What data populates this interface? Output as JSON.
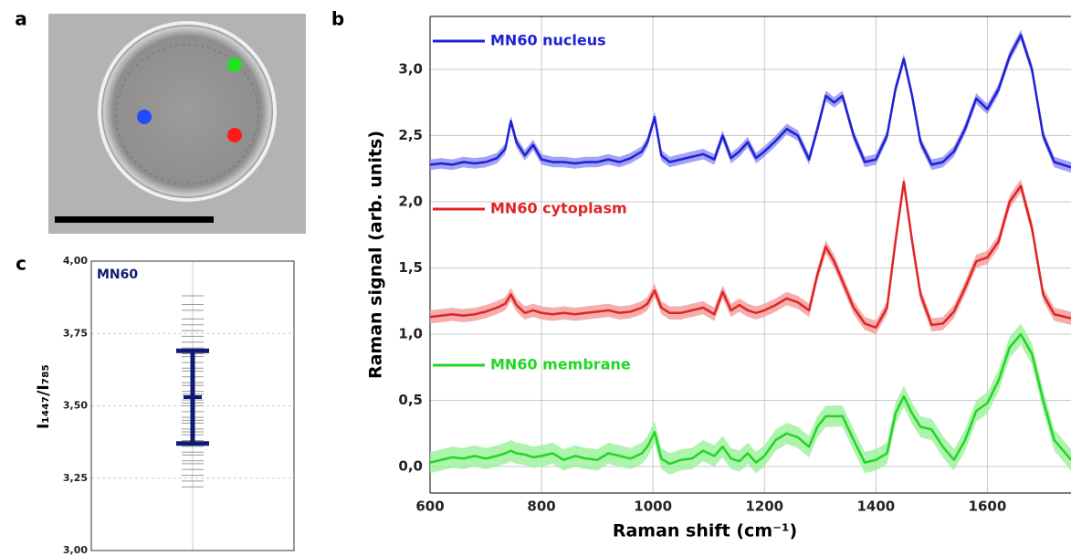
{
  "image": {
    "label": "a"
  },
  "chart_data": [
    {
      "type": "line",
      "panel": "b",
      "xlabel": "Raman shift (cm⁻¹)",
      "ylabel": "Raman signal (arb. units)",
      "xlim": [
        600,
        1750
      ],
      "ylim": [
        -0.2,
        3.4
      ],
      "xticks": [
        600,
        800,
        1000,
        1200,
        1400,
        1600
      ],
      "yticks": [
        {
          "value": 0,
          "label": "0,0"
        },
        {
          "value": 0.5,
          "label": "0,5"
        },
        {
          "value": 1,
          "label": "1,0"
        },
        {
          "value": 1.5,
          "label": "1,5"
        },
        {
          "value": 2,
          "label": "2,0"
        },
        {
          "value": 2.5,
          "label": "2,5"
        },
        {
          "value": 3,
          "label": "3,0"
        }
      ],
      "grid": true,
      "x": [
        600,
        620,
        640,
        660,
        680,
        700,
        720,
        735,
        745,
        755,
        770,
        785,
        800,
        820,
        840,
        860,
        880,
        900,
        920,
        940,
        960,
        980,
        990,
        1003,
        1015,
        1030,
        1050,
        1070,
        1090,
        1110,
        1125,
        1140,
        1155,
        1170,
        1185,
        1200,
        1220,
        1240,
        1260,
        1280,
        1295,
        1310,
        1325,
        1340,
        1360,
        1380,
        1400,
        1420,
        1435,
        1450,
        1465,
        1480,
        1500,
        1520,
        1540,
        1560,
        1580,
        1600,
        1620,
        1640,
        1660,
        1680,
        1700,
        1720,
        1750
      ],
      "series": [
        {
          "name": "MN60 nucleus",
          "color": "#1f1fd6",
          "band_color": "#8c8cf0",
          "error": 0.04,
          "values": [
            2.28,
            2.29,
            2.28,
            2.3,
            2.29,
            2.3,
            2.33,
            2.4,
            2.61,
            2.45,
            2.35,
            2.43,
            2.32,
            2.3,
            2.3,
            2.29,
            2.3,
            2.3,
            2.32,
            2.3,
            2.33,
            2.38,
            2.45,
            2.64,
            2.35,
            2.3,
            2.32,
            2.34,
            2.36,
            2.32,
            2.5,
            2.33,
            2.38,
            2.45,
            2.33,
            2.38,
            2.46,
            2.55,
            2.5,
            2.32,
            2.55,
            2.8,
            2.75,
            2.8,
            2.5,
            2.3,
            2.32,
            2.5,
            2.85,
            3.08,
            2.8,
            2.45,
            2.28,
            2.3,
            2.38,
            2.55,
            2.78,
            2.7,
            2.85,
            3.1,
            3.26,
            3.0,
            2.5,
            2.3,
            2.26
          ]
        },
        {
          "name": "MN60 cytoplasm",
          "color": "#e02424",
          "band_color": "#f29a9a",
          "error": 0.05,
          "values": [
            1.13,
            1.14,
            1.15,
            1.14,
            1.15,
            1.17,
            1.2,
            1.23,
            1.3,
            1.22,
            1.16,
            1.18,
            1.16,
            1.15,
            1.16,
            1.15,
            1.16,
            1.17,
            1.18,
            1.16,
            1.17,
            1.2,
            1.23,
            1.33,
            1.2,
            1.16,
            1.16,
            1.18,
            1.2,
            1.15,
            1.32,
            1.18,
            1.22,
            1.18,
            1.16,
            1.18,
            1.22,
            1.27,
            1.24,
            1.18,
            1.45,
            1.66,
            1.55,
            1.4,
            1.2,
            1.08,
            1.05,
            1.2,
            1.7,
            2.15,
            1.7,
            1.3,
            1.07,
            1.08,
            1.17,
            1.35,
            1.55,
            1.58,
            1.7,
            2.0,
            2.12,
            1.8,
            1.3,
            1.15,
            1.12
          ]
        },
        {
          "name": "MN60 membrane",
          "color": "#22d622",
          "band_color": "#9af09a",
          "error": 0.08,
          "values": [
            0.03,
            0.05,
            0.07,
            0.06,
            0.08,
            0.06,
            0.08,
            0.1,
            0.12,
            0.1,
            0.09,
            0.07,
            0.08,
            0.1,
            0.05,
            0.08,
            0.06,
            0.05,
            0.1,
            0.08,
            0.06,
            0.1,
            0.15,
            0.26,
            0.06,
            0.02,
            0.05,
            0.06,
            0.12,
            0.08,
            0.15,
            0.06,
            0.04,
            0.1,
            0.03,
            0.08,
            0.2,
            0.25,
            0.22,
            0.15,
            0.3,
            0.38,
            0.38,
            0.38,
            0.2,
            0.03,
            0.05,
            0.1,
            0.4,
            0.53,
            0.4,
            0.3,
            0.28,
            0.15,
            0.05,
            0.2,
            0.42,
            0.48,
            0.65,
            0.9,
            1.0,
            0.85,
            0.5,
            0.2,
            0.05
          ]
        }
      ]
    },
    {
      "type": "errorbar",
      "panel": "c",
      "ylabel": "I₁₄₄₇/I₇₈₅",
      "ylim": [
        3,
        4
      ],
      "yticks": [
        {
          "value": 3,
          "label": "3,00"
        },
        {
          "value": 3.25,
          "label": "3,25"
        },
        {
          "value": 3.5,
          "label": "3,50"
        },
        {
          "value": 3.75,
          "label": "3,75"
        },
        {
          "value": 4,
          "label": "4,00"
        }
      ],
      "grid": true,
      "categories": [
        null
      ],
      "series": [
        {
          "name": "MN60",
          "color": "#0d1a73",
          "values": [
            3.53
          ],
          "errors": [
            0.16
          ],
          "points": [
            3.22,
            3.24,
            3.26,
            3.28,
            3.3,
            3.31,
            3.33,
            3.34,
            3.36,
            3.37,
            3.38,
            3.4,
            3.41,
            3.42,
            3.44,
            3.45,
            3.46,
            3.48,
            3.5,
            3.51,
            3.52,
            3.54,
            3.55,
            3.57,
            3.58,
            3.6,
            3.62,
            3.63,
            3.65,
            3.67,
            3.68,
            3.7,
            3.72,
            3.74,
            3.76,
            3.78,
            3.8,
            3.83,
            3.85,
            3.88
          ],
          "points_color": "#999999"
        }
      ]
    }
  ]
}
